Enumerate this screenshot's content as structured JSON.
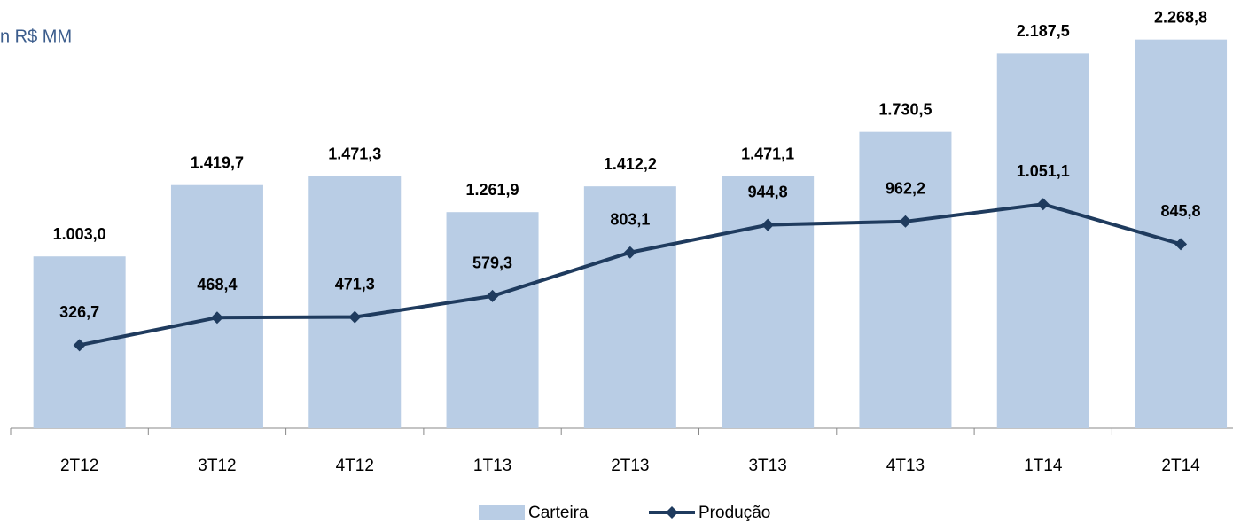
{
  "chart_data": {
    "type": "bar-line",
    "title": "n R$ MM",
    "categories": [
      "2T12",
      "3T12",
      "4T12",
      "1T13",
      "2T13",
      "3T13",
      "4T13",
      "1T14",
      "2T14"
    ],
    "series": [
      {
        "name": "Carteira",
        "type": "bar",
        "color": "#b9cde5",
        "values": [
          1003.0,
          1419.7,
          1471.3,
          1261.9,
          1412.2,
          1471.1,
          1730.5,
          2187.5,
          2268.8
        ],
        "value_labels": [
          "1.003,0",
          "1.419,7",
          "1.471,3",
          "1.261,9",
          "1.412,2",
          "1.471,1",
          "1.730,5",
          "2.187,5",
          "2.268,8"
        ]
      },
      {
        "name": "Produção",
        "type": "line",
        "axis": "y2",
        "color": "#1f3b5e",
        "values": [
          326.7,
          468.4,
          471.3,
          579.3,
          803.1,
          944.8,
          962.2,
          1051.1,
          845.8
        ],
        "value_labels": [
          "326,7",
          "468,4",
          "471,3",
          "579,3",
          "803,1",
          "944,8",
          "962,2",
          "1.051,1",
          "845,8"
        ]
      }
    ],
    "ylim": [
      0,
      2500
    ],
    "y2lim": [
      -100,
      2100
    ],
    "legend": "bottom"
  }
}
